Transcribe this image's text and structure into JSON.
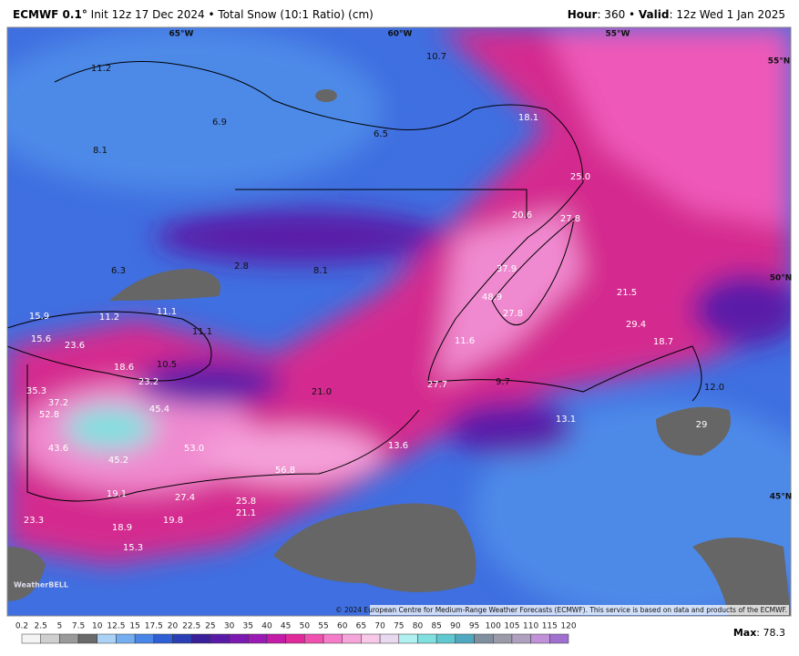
{
  "header": {
    "model": "ECMWF 0.1°",
    "description": "Init 12z 17 Dec 2024 • Total Snow (10:1 Ratio) (cm)",
    "hour_label": "Hour",
    "hour_value": ": 360 • ",
    "valid_label": "Valid",
    "valid_value": ": 12z Wed 1 Jan 2025"
  },
  "map": {
    "graticule": [
      "65°W",
      "60°W",
      "55°W",
      "55°N",
      "50°N",
      "45°N"
    ],
    "labels": [
      "11.2",
      "6.9",
      "8.1",
      "6.5",
      "10.7",
      "18.1",
      "25.0",
      "20.6",
      "27.8",
      "2.8",
      "6.3",
      "8.1",
      "37.9",
      "15.9",
      "11.2",
      "11.1",
      "11.1",
      "48.9",
      "27.8",
      "21.5",
      "29.4",
      "15.6",
      "23.6",
      "18.6",
      "10.5",
      "11.6",
      "18.7",
      "23.2",
      "21.0",
      "27.7",
      "9.7",
      "12.0",
      "35.3",
      "37.2",
      "52.8",
      "45.4",
      "13.1",
      "29",
      "43.6",
      "53.0",
      "13.6",
      "45.2",
      "56.8",
      "19.1",
      "27.4",
      "25.8",
      "21.1",
      "23.3",
      "19.8",
      "18.9",
      "15.3"
    ],
    "copyright": "© 2024 European Centre for Medium-Range Weather Forecasts (ECMWF). This service is based on data and products of the ECMWF.",
    "logo": "WeatherBELL"
  },
  "colorbar": {
    "labels": [
      "0.2",
      "2.5",
      "5",
      "7.5",
      "10",
      "12.5",
      "15",
      "17.5",
      "20",
      "22.5",
      "25",
      "30",
      "35",
      "40",
      "45",
      "50",
      "55",
      "60",
      "65",
      "70",
      "75",
      "80",
      "85",
      "90",
      "95",
      "100",
      "105",
      "110",
      "115",
      "120"
    ]
  },
  "max": {
    "label": "Max",
    "value": ": 78.3"
  }
}
